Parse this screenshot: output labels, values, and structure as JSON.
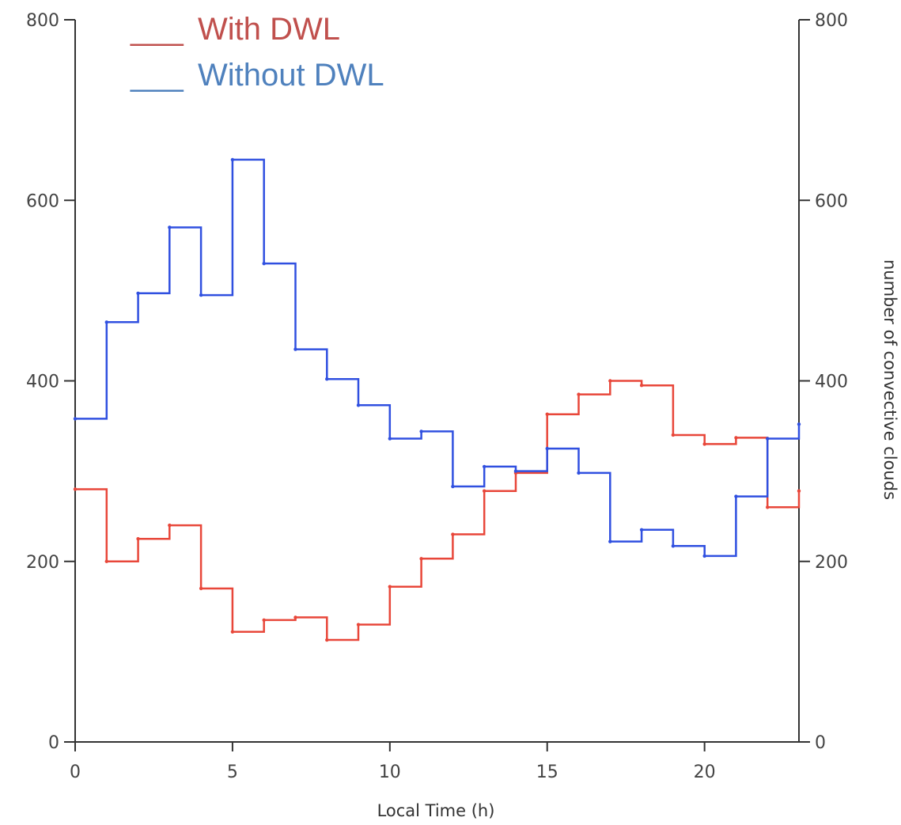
{
  "chart_data": {
    "type": "line",
    "step": true,
    "x": [
      0,
      1,
      2,
      3,
      4,
      5,
      6,
      7,
      8,
      9,
      10,
      11,
      12,
      13,
      14,
      15,
      16,
      17,
      18,
      19,
      20,
      21,
      22,
      23
    ],
    "series": [
      {
        "name": "With DWL",
        "color": "#c0504d",
        "line_color": "#e8473a",
        "values": [
          280,
          200,
          225,
          240,
          170,
          122,
          135,
          138,
          113,
          130,
          172,
          203,
          230,
          278,
          298,
          363,
          385,
          400,
          395,
          340,
          330,
          337,
          260,
          278
        ]
      },
      {
        "name": "Without DWL",
        "color": "#4f81bd",
        "line_color": "#3050e0",
        "values": [
          358,
          465,
          497,
          570,
          495,
          645,
          530,
          435,
          402,
          373,
          336,
          344,
          283,
          305,
          300,
          325,
          298,
          222,
          235,
          217,
          206,
          272,
          336,
          352
        ]
      }
    ],
    "xlabel": "Local Time (h)",
    "ylabel_right": "number of convective clouds",
    "xlim": [
      0,
      23
    ],
    "ylim": [
      0,
      800
    ],
    "xticks": [
      0,
      5,
      10,
      15,
      20
    ],
    "yticks": [
      0,
      200,
      400,
      600,
      800
    ],
    "legend_placement": "top-left",
    "legend_marker": "___",
    "grid": false
  }
}
